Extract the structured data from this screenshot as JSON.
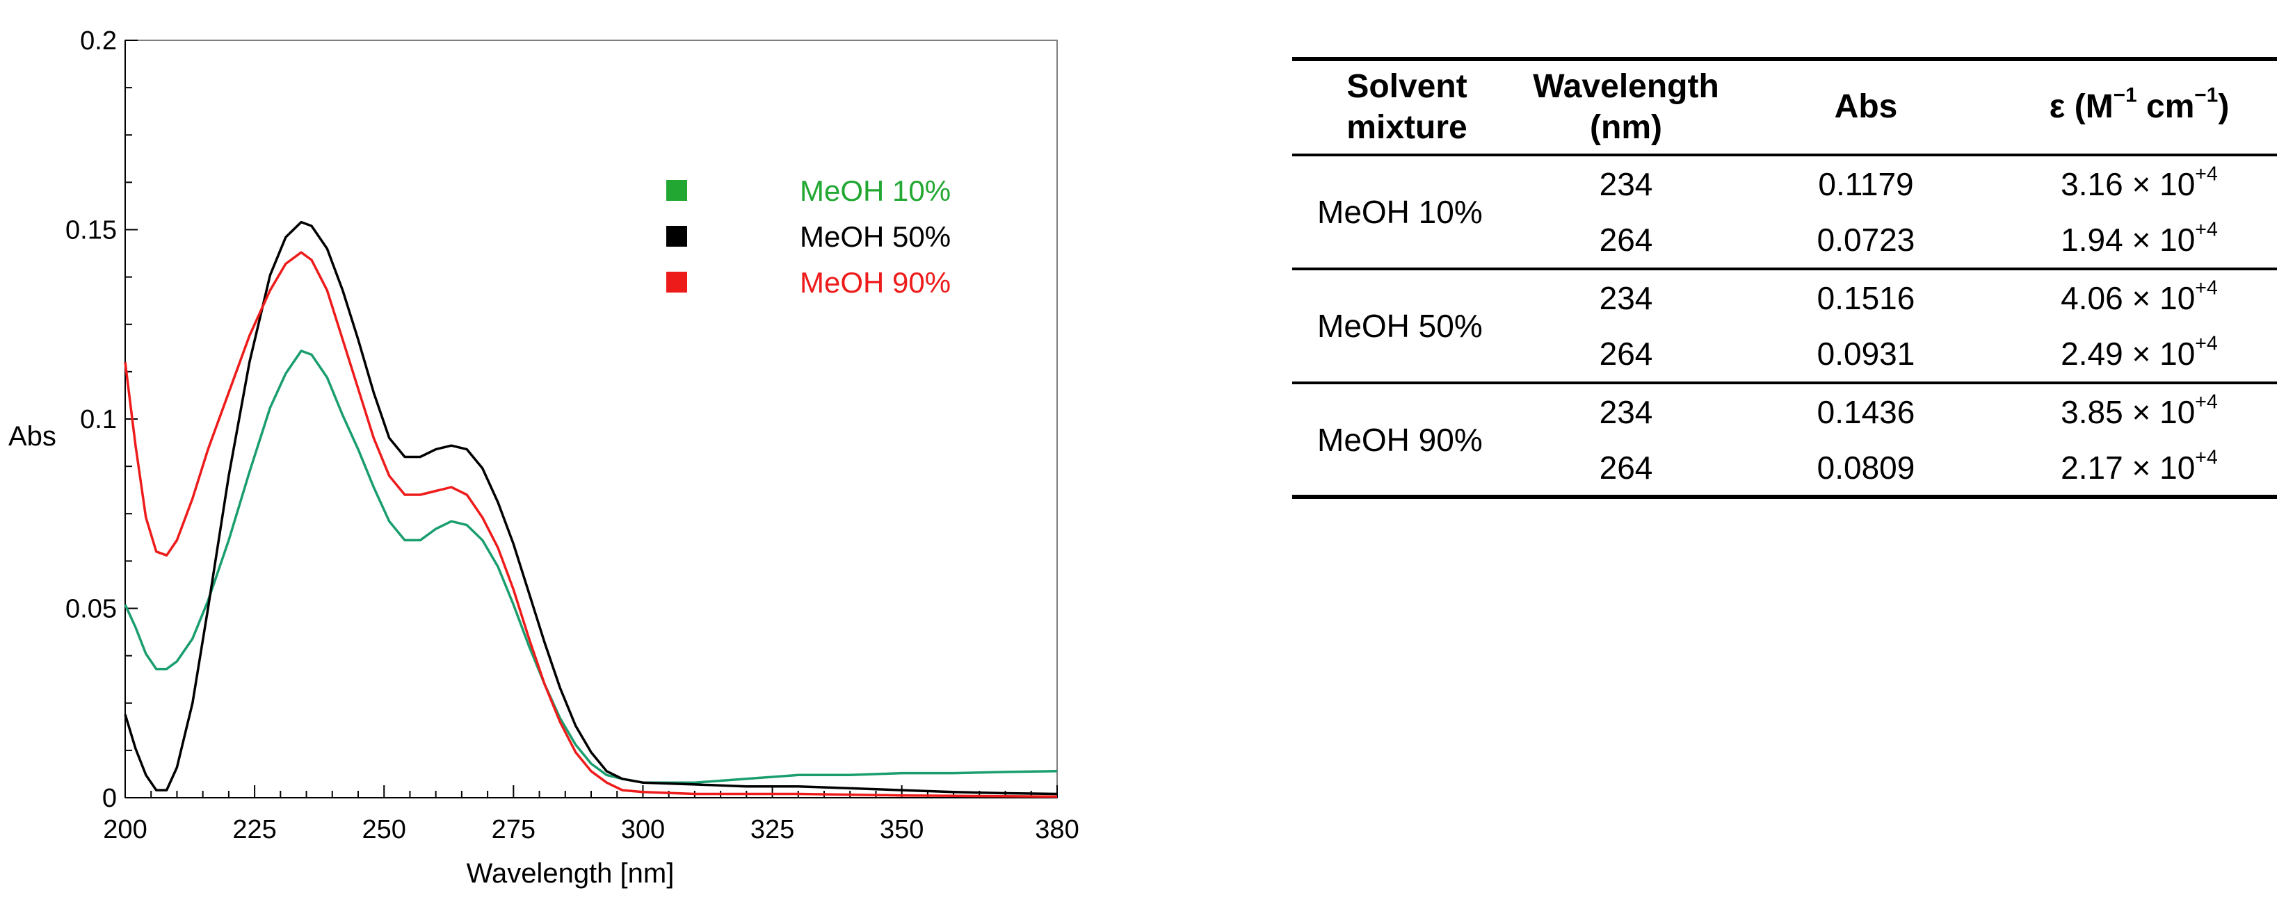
{
  "chart_data": {
    "type": "line",
    "xlabel": "Wavelength [nm]",
    "ylabel": "Abs",
    "xlim": [
      200,
      380
    ],
    "ylim": [
      0,
      0.2
    ],
    "xticks": [
      200,
      225,
      250,
      275,
      300,
      325,
      350,
      380
    ],
    "xtick_labels": [
      "200",
      "225",
      "250",
      "275",
      "300",
      "325",
      "350",
      "380"
    ],
    "yticks": [
      0,
      0.05,
      0.1,
      0.15,
      0.2
    ],
    "ytick_labels": [
      "0",
      "0.05",
      "0.1",
      "0.15",
      "0.2"
    ],
    "grid": false,
    "legend_position": "upper-right",
    "series": [
      {
        "name": "MeOH 10%",
        "color": "#1a9e6e",
        "marker_color": "#22a832",
        "points": [
          [
            200,
            0.051
          ],
          [
            202,
            0.045
          ],
          [
            204,
            0.038
          ],
          [
            206,
            0.034
          ],
          [
            208,
            0.034
          ],
          [
            210,
            0.036
          ],
          [
            213,
            0.042
          ],
          [
            216,
            0.052
          ],
          [
            220,
            0.068
          ],
          [
            224,
            0.086
          ],
          [
            228,
            0.103
          ],
          [
            231,
            0.112
          ],
          [
            234,
            0.118
          ],
          [
            236,
            0.117
          ],
          [
            239,
            0.111
          ],
          [
            242,
            0.101
          ],
          [
            245,
            0.092
          ],
          [
            248,
            0.082
          ],
          [
            251,
            0.073
          ],
          [
            254,
            0.068
          ],
          [
            257,
            0.068
          ],
          [
            260,
            0.071
          ],
          [
            263,
            0.073
          ],
          [
            266,
            0.072
          ],
          [
            269,
            0.068
          ],
          [
            272,
            0.061
          ],
          [
            275,
            0.051
          ],
          [
            278,
            0.04
          ],
          [
            281,
            0.03
          ],
          [
            284,
            0.021
          ],
          [
            287,
            0.014
          ],
          [
            290,
            0.009
          ],
          [
            293,
            0.006
          ],
          [
            296,
            0.005
          ],
          [
            300,
            0.004
          ],
          [
            310,
            0.004
          ],
          [
            320,
            0.005
          ],
          [
            330,
            0.006
          ],
          [
            340,
            0.006
          ],
          [
            350,
            0.0065
          ],
          [
            360,
            0.0065
          ],
          [
            370,
            0.0068
          ],
          [
            380,
            0.007
          ]
        ]
      },
      {
        "name": "MeOH 50%",
        "color": "#000000",
        "marker_color": "#000000",
        "points": [
          [
            200,
            0.022
          ],
          [
            202,
            0.013
          ],
          [
            204,
            0.006
          ],
          [
            206,
            0.002
          ],
          [
            208,
            0.002
          ],
          [
            210,
            0.008
          ],
          [
            213,
            0.025
          ],
          [
            216,
            0.05
          ],
          [
            220,
            0.085
          ],
          [
            224,
            0.115
          ],
          [
            228,
            0.138
          ],
          [
            231,
            0.148
          ],
          [
            234,
            0.152
          ],
          [
            236,
            0.151
          ],
          [
            239,
            0.145
          ],
          [
            242,
            0.134
          ],
          [
            245,
            0.121
          ],
          [
            248,
            0.107
          ],
          [
            251,
            0.095
          ],
          [
            254,
            0.09
          ],
          [
            257,
            0.09
          ],
          [
            260,
            0.092
          ],
          [
            263,
            0.093
          ],
          [
            266,
            0.092
          ],
          [
            269,
            0.087
          ],
          [
            272,
            0.078
          ],
          [
            275,
            0.067
          ],
          [
            278,
            0.054
          ],
          [
            281,
            0.041
          ],
          [
            284,
            0.029
          ],
          [
            287,
            0.019
          ],
          [
            290,
            0.012
          ],
          [
            293,
            0.007
          ],
          [
            296,
            0.005
          ],
          [
            300,
            0.004
          ],
          [
            310,
            0.0035
          ],
          [
            320,
            0.003
          ],
          [
            330,
            0.003
          ],
          [
            340,
            0.0025
          ],
          [
            350,
            0.002
          ],
          [
            360,
            0.0015
          ],
          [
            370,
            0.0012
          ],
          [
            380,
            0.001
          ]
        ]
      },
      {
        "name": "MeOH 90%",
        "color": "#ee1b1b",
        "marker_color": "#ee1b1b",
        "points": [
          [
            200,
            0.115
          ],
          [
            202,
            0.093
          ],
          [
            204,
            0.074
          ],
          [
            206,
            0.065
          ],
          [
            208,
            0.064
          ],
          [
            210,
            0.068
          ],
          [
            213,
            0.079
          ],
          [
            216,
            0.092
          ],
          [
            220,
            0.107
          ],
          [
            224,
            0.122
          ],
          [
            228,
            0.134
          ],
          [
            231,
            0.141
          ],
          [
            234,
            0.144
          ],
          [
            236,
            0.142
          ],
          [
            239,
            0.134
          ],
          [
            242,
            0.121
          ],
          [
            245,
            0.108
          ],
          [
            248,
            0.095
          ],
          [
            251,
            0.085
          ],
          [
            254,
            0.08
          ],
          [
            257,
            0.08
          ],
          [
            260,
            0.081
          ],
          [
            263,
            0.082
          ],
          [
            266,
            0.08
          ],
          [
            269,
            0.074
          ],
          [
            272,
            0.066
          ],
          [
            275,
            0.055
          ],
          [
            278,
            0.042
          ],
          [
            281,
            0.03
          ],
          [
            284,
            0.02
          ],
          [
            287,
            0.012
          ],
          [
            290,
            0.007
          ],
          [
            293,
            0.004
          ],
          [
            296,
            0.002
          ],
          [
            300,
            0.0015
          ],
          [
            310,
            0.001
          ],
          [
            320,
            0.001
          ],
          [
            330,
            0.001
          ],
          [
            340,
            0.0008
          ],
          [
            350,
            0.0006
          ],
          [
            360,
            0.0005
          ],
          [
            370,
            0.0004
          ],
          [
            380,
            0.0003
          ]
        ]
      }
    ]
  },
  "table": {
    "headers": {
      "solvent": [
        "Solvent",
        "mixture"
      ],
      "wavelength": [
        "Wavelength",
        "(nm)"
      ],
      "abs": "Abs",
      "eps_prefix": "ε (M",
      "eps_sup1": "−1",
      "eps_mid": " cm",
      "eps_sup2": "−1",
      "eps_suffix": ")"
    },
    "groups": [
      {
        "solvent": "MeOH 10%",
        "rows": [
          {
            "wavelength": "234",
            "abs": "0.1179",
            "eps_mantissa": "3.16 × 10",
            "eps_exp": "+4"
          },
          {
            "wavelength": "264",
            "abs": "0.0723",
            "eps_mantissa": "1.94 × 10",
            "eps_exp": "+4"
          }
        ]
      },
      {
        "solvent": "MeOH 50%",
        "rows": [
          {
            "wavelength": "234",
            "abs": "0.1516",
            "eps_mantissa": "4.06 × 10",
            "eps_exp": "+4"
          },
          {
            "wavelength": "264",
            "abs": "0.0931",
            "eps_mantissa": "2.49 × 10",
            "eps_exp": "+4"
          }
        ]
      },
      {
        "solvent": "MeOH 90%",
        "rows": [
          {
            "wavelength": "234",
            "abs": "0.1436",
            "eps_mantissa": "3.85 × 10",
            "eps_exp": "+4"
          },
          {
            "wavelength": "264",
            "abs": "0.0809",
            "eps_mantissa": "2.17 × 10",
            "eps_exp": "+4"
          }
        ]
      }
    ]
  }
}
